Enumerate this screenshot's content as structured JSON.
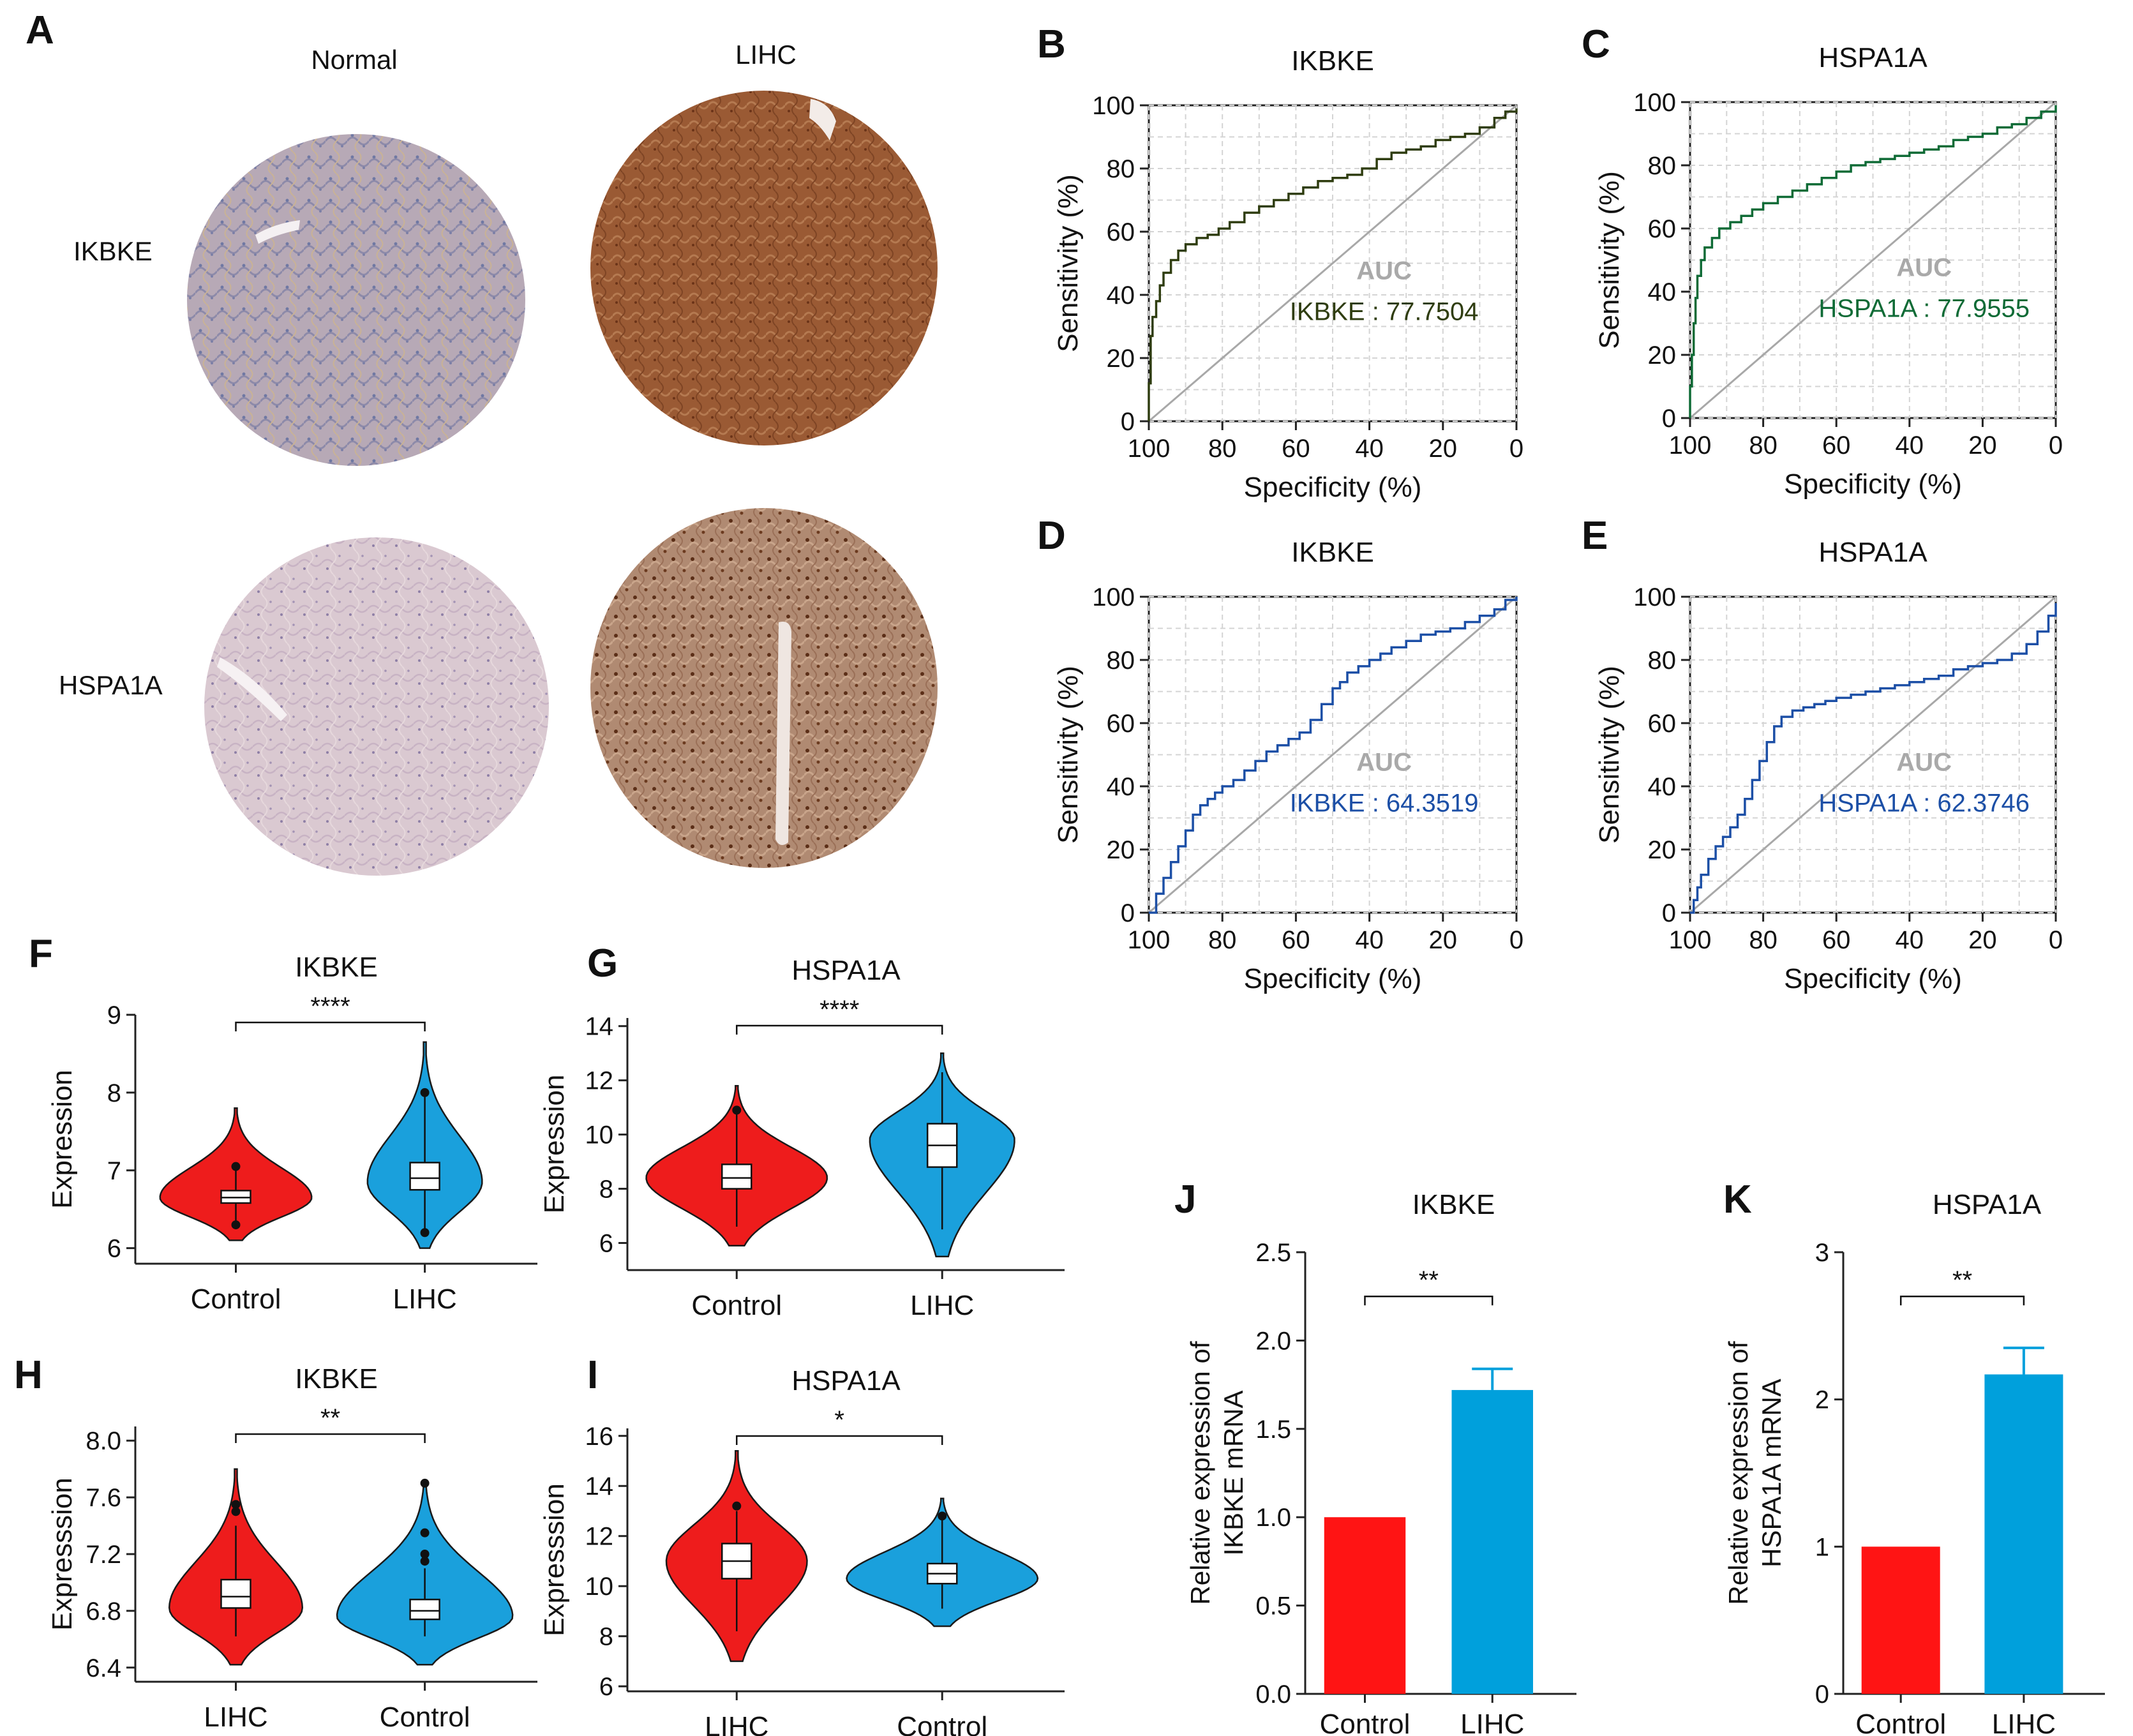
{
  "figure": {
    "panels": {
      "A": {
        "letter": "A",
        "col_labels": [
          "Normal",
          "LIHC"
        ],
        "row_labels": [
          "IKBKE",
          "HSPA1A"
        ]
      }
    }
  },
  "chart_data": [
    {
      "panel": "B",
      "type": "line",
      "title": "IKBKE",
      "xlabel": "Specificity (%)",
      "ylabel": "Sensitivity (%)",
      "xlim": [
        100,
        0
      ],
      "ylim": [
        0,
        100
      ],
      "xticks": [
        "100",
        "80",
        "60",
        "40",
        "20",
        "0"
      ],
      "yticks": [
        "0",
        "20",
        "40",
        "60",
        "80",
        "100"
      ],
      "grid": true,
      "color": "#2f3d10",
      "auc_title": "AUC",
      "auc_label": "IKBKE : 77.7504",
      "x": [
        100,
        100,
        99.5,
        99,
        98,
        97,
        96,
        94,
        92,
        90,
        87,
        84,
        81,
        78,
        74,
        70,
        66,
        62,
        58,
        54,
        50,
        46,
        42,
        38,
        34,
        30,
        26,
        22,
        18,
        14,
        10,
        6,
        3,
        0
      ],
      "y": [
        0,
        12,
        27,
        33,
        38,
        43,
        47,
        51,
        54,
        56,
        58,
        59,
        61,
        63,
        66,
        68,
        70,
        72,
        74,
        76,
        77,
        78,
        80,
        83,
        85,
        86,
        87,
        89,
        90,
        91,
        93,
        96,
        98,
        99
      ]
    },
    {
      "panel": "C",
      "type": "line",
      "title": "HSPA1A",
      "xlabel": "Specificity (%)",
      "ylabel": "Sensitivity (%)",
      "xlim": [
        100,
        0
      ],
      "ylim": [
        0,
        100
      ],
      "xticks": [
        "100",
        "80",
        "60",
        "40",
        "20",
        "0"
      ],
      "yticks": [
        "0",
        "20",
        "40",
        "60",
        "80",
        "100"
      ],
      "grid": true,
      "color": "#0f6b36",
      "auc_title": "AUC",
      "auc_label": "HSPA1A : 77.9555",
      "x": [
        100,
        100,
        99.5,
        99,
        98.5,
        98,
        97,
        96,
        94,
        92,
        89,
        86,
        83,
        80,
        76,
        72,
        68,
        64,
        60,
        56,
        52,
        48,
        44,
        40,
        36,
        32,
        28,
        24,
        20,
        16,
        12,
        8,
        4,
        0
      ],
      "y": [
        0,
        10,
        20,
        30,
        38,
        45,
        50,
        54,
        57,
        60,
        62,
        64,
        66,
        68,
        70,
        72,
        74,
        76,
        78,
        80,
        81,
        82,
        83,
        84,
        85,
        86,
        88,
        89,
        90,
        92,
        93,
        95,
        97,
        99
      ]
    },
    {
      "panel": "D",
      "type": "line",
      "title": "IKBKE",
      "xlabel": "Specificity (%)",
      "ylabel": "Sensitivity (%)",
      "xlim": [
        100,
        0
      ],
      "ylim": [
        0,
        100
      ],
      "xticks": [
        "100",
        "80",
        "60",
        "40",
        "20",
        "0"
      ],
      "yticks": [
        "0",
        "20",
        "40",
        "60",
        "80",
        "100"
      ],
      "grid": true,
      "color": "#1c4fa6",
      "auc_title": "AUC",
      "auc_label": "IKBKE : 64.3519",
      "x": [
        100,
        98,
        96,
        94,
        92,
        90,
        88,
        86,
        84,
        82,
        80,
        77,
        74,
        71,
        68,
        65,
        62,
        59,
        56,
        53,
        50,
        48,
        46,
        43,
        40,
        37,
        34,
        30,
        26,
        22,
        18,
        14,
        10,
        6,
        3,
        0
      ],
      "y": [
        0,
        6,
        11,
        16,
        21,
        26,
        31,
        34,
        36,
        38,
        40,
        42,
        45,
        48,
        51,
        53,
        55,
        57,
        61,
        66,
        71,
        73,
        76,
        78,
        80,
        82,
        84,
        86,
        88,
        89,
        90,
        92,
        94,
        96,
        99,
        100
      ]
    },
    {
      "panel": "E",
      "type": "line",
      "title": "HSPA1A",
      "xlabel": "Specificity (%)",
      "ylabel": "Sensitivity (%)",
      "xlim": [
        100,
        0
      ],
      "ylim": [
        0,
        100
      ],
      "xticks": [
        "100",
        "80",
        "60",
        "40",
        "20",
        "0"
      ],
      "yticks": [
        "0",
        "20",
        "40",
        "60",
        "80",
        "100"
      ],
      "grid": true,
      "color": "#1c4fa6",
      "auc_title": "AUC",
      "auc_label": "HSPA1A : 62.3746",
      "x": [
        100,
        99,
        98,
        97,
        95,
        93,
        91,
        89,
        87,
        85,
        83,
        81,
        79,
        77,
        75,
        72,
        69,
        66,
        63,
        60,
        56,
        52,
        48,
        44,
        40,
        36,
        32,
        28,
        24,
        20,
        16,
        12,
        8,
        5,
        2,
        0
      ],
      "y": [
        0,
        4,
        8,
        12,
        17,
        21,
        24,
        27,
        31,
        36,
        42,
        48,
        54,
        59,
        62,
        64,
        65,
        66,
        67,
        68,
        69,
        70,
        71,
        72,
        73,
        74,
        75,
        77,
        78,
        79,
        80,
        82,
        85,
        89,
        94,
        98
      ]
    },
    {
      "panel": "F",
      "type": "violin",
      "title": "IKBKE",
      "ylabel": "Expression",
      "categories": [
        "Control",
        "LIHC"
      ],
      "ylim": [
        5.8,
        9.0
      ],
      "yticks": [
        "6",
        "7",
        "8",
        "9"
      ],
      "significance": "****",
      "sig_groups": [
        0,
        1
      ],
      "groups": [
        {
          "name": "Control",
          "color": "#ee1c1c",
          "min": 6.1,
          "q1": 6.58,
          "median": 6.65,
          "q3": 6.74,
          "max": 7.8,
          "whisker_low": 6.35,
          "whisker_high": 7.05,
          "width": 0.82,
          "peak": 6.65,
          "outliers": [
            7.05,
            6.3
          ]
        },
        {
          "name": "LIHC",
          "color": "#1aa0dc",
          "min": 6.0,
          "q1": 6.75,
          "median": 6.9,
          "q3": 7.1,
          "max": 8.65,
          "whisker_low": 6.2,
          "whisker_high": 7.95,
          "width": 0.62,
          "peak": 6.85,
          "outliers": [
            8.0,
            6.2
          ]
        }
      ]
    },
    {
      "panel": "G",
      "type": "violin",
      "title": "HSPA1A",
      "ylabel": "Expression",
      "categories": [
        "Control",
        "LIHC"
      ],
      "ylim": [
        5.0,
        14.3
      ],
      "yticks": [
        "6",
        "8",
        "10",
        "12",
        "14"
      ],
      "significance": "****",
      "sig_groups": [
        0,
        1
      ],
      "groups": [
        {
          "name": "Control",
          "color": "#ee1c1c",
          "min": 5.9,
          "q1": 8.0,
          "median": 8.4,
          "q3": 8.9,
          "max": 11.8,
          "whisker_low": 6.6,
          "whisker_high": 10.8,
          "width": 0.9,
          "peak": 8.4,
          "outliers": [
            10.9
          ]
        },
        {
          "name": "LIHC",
          "color": "#1aa0dc",
          "min": 5.5,
          "q1": 8.8,
          "median": 9.6,
          "q3": 10.4,
          "max": 13.0,
          "whisker_low": 6.5,
          "whisker_high": 12.3,
          "width": 0.72,
          "peak": 9.8,
          "outliers": []
        }
      ]
    },
    {
      "panel": "H",
      "type": "violin",
      "title": "IKBKE",
      "ylabel": "Expresssion",
      "categories": [
        "LIHC",
        "Control"
      ],
      "ylim": [
        6.3,
        8.1
      ],
      "yticks": [
        "6.4",
        "6.8",
        "7.2",
        "7.6",
        "8.0"
      ],
      "significance": "**",
      "sig_groups": [
        0,
        1
      ],
      "groups": [
        {
          "name": "LIHC",
          "color": "#ee1c1c",
          "min": 6.42,
          "q1": 6.82,
          "median": 6.9,
          "q3": 7.02,
          "max": 7.8,
          "whisker_low": 6.62,
          "whisker_high": 7.4,
          "width": 0.72,
          "peak": 6.82,
          "outliers": [
            7.55,
            7.5
          ]
        },
        {
          "name": "Control",
          "color": "#1aa0dc",
          "min": 6.42,
          "q1": 6.74,
          "median": 6.8,
          "q3": 6.88,
          "max": 7.72,
          "whisker_low": 6.62,
          "whisker_high": 7.1,
          "width": 0.95,
          "peak": 6.76,
          "outliers": [
            7.7,
            7.35,
            7.2,
            7.15
          ]
        }
      ]
    },
    {
      "panel": "I",
      "type": "violin",
      "title": "HSPA1A",
      "ylabel": "Expresssion",
      "categories": [
        "LIHC",
        "Control"
      ],
      "ylim": [
        5.8,
        16.3
      ],
      "yticks": [
        "6",
        "8",
        "10",
        "12",
        "14",
        "16"
      ],
      "significance": "*",
      "sig_groups": [
        0,
        1
      ],
      "groups": [
        {
          "name": "LIHC",
          "color": "#ee1c1c",
          "min": 7.0,
          "q1": 10.3,
          "median": 11.0,
          "q3": 11.7,
          "max": 15.4,
          "whisker_low": 8.2,
          "whisker_high": 13.0,
          "width": 0.7,
          "peak": 11.0,
          "outliers": [
            13.2
          ]
        },
        {
          "name": "Control",
          "color": "#1aa0dc",
          "min": 8.4,
          "q1": 10.1,
          "median": 10.5,
          "q3": 10.9,
          "max": 13.5,
          "whisker_low": 9.1,
          "whisker_high": 12.7,
          "width": 0.95,
          "peak": 10.3,
          "outliers": [
            12.8
          ]
        }
      ]
    },
    {
      "panel": "J",
      "type": "bar",
      "title": "IKBKE",
      "ylabel": "Relative expression of\nIKBKE mRNA",
      "categories": [
        "Control",
        "LIHC"
      ],
      "values": [
        1.0,
        1.72
      ],
      "errors": [
        0,
        0.12
      ],
      "colors": [
        "#ff1414",
        "#00a0dc"
      ],
      "ylim": [
        0,
        2.5
      ],
      "yticks": [
        "0.0",
        "0.5",
        "1.0",
        "1.5",
        "2.0",
        "2.5"
      ],
      "significance": "**"
    },
    {
      "panel": "K",
      "type": "bar",
      "title": "HSPA1A",
      "ylabel": "Relative expression of\nHSPA1A mRNA",
      "categories": [
        "Control",
        "LIHC"
      ],
      "values": [
        1.0,
        2.17
      ],
      "errors": [
        0,
        0.18
      ],
      "colors": [
        "#ff1414",
        "#00a0dc"
      ],
      "ylim": [
        0,
        3
      ],
      "yticks": [
        "0",
        "1",
        "2",
        "3"
      ],
      "significance": "**"
    }
  ]
}
